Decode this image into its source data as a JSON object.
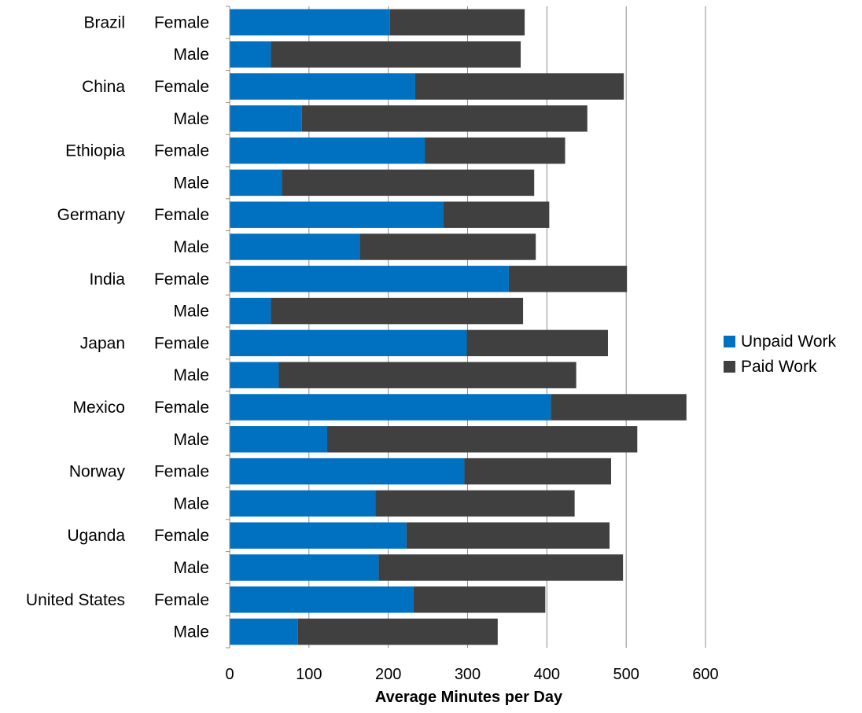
{
  "chart_data": {
    "type": "bar",
    "orientation": "horizontal",
    "stacked": true,
    "title": "",
    "xlabel": "Average Minutes per Day",
    "ylabel": "",
    "xlim": [
      0,
      600
    ],
    "xticks": [
      0,
      100,
      200,
      300,
      400,
      500,
      600
    ],
    "grid": "vertical",
    "legend_position": "right",
    "countries": [
      "Brazil",
      "China",
      "Ethiopia",
      "Germany",
      "India",
      "Japan",
      "Mexico",
      "Norway",
      "Uganda",
      "United States"
    ],
    "genders": [
      "Female",
      "Male"
    ],
    "series": [
      {
        "name": "Unpaid Work",
        "color": "#0070c0",
        "values": [
          [
            202,
            52
          ],
          [
            234,
            91
          ],
          [
            246,
            66
          ],
          [
            269,
            164
          ],
          [
            352,
            52
          ],
          [
            299,
            62
          ],
          [
            405,
            123
          ],
          [
            296,
            184
          ],
          [
            223,
            188
          ],
          [
            232,
            86
          ]
        ]
      },
      {
        "name": "Paid Work",
        "color": "#404040",
        "values": [
          [
            170,
            315
          ],
          [
            263,
            360
          ],
          [
            177,
            318
          ],
          [
            134,
            222
          ],
          [
            149,
            318
          ],
          [
            178,
            375
          ],
          [
            171,
            391
          ],
          [
            185,
            251
          ],
          [
            256,
            308
          ],
          [
            166,
            252
          ]
        ]
      }
    ]
  }
}
